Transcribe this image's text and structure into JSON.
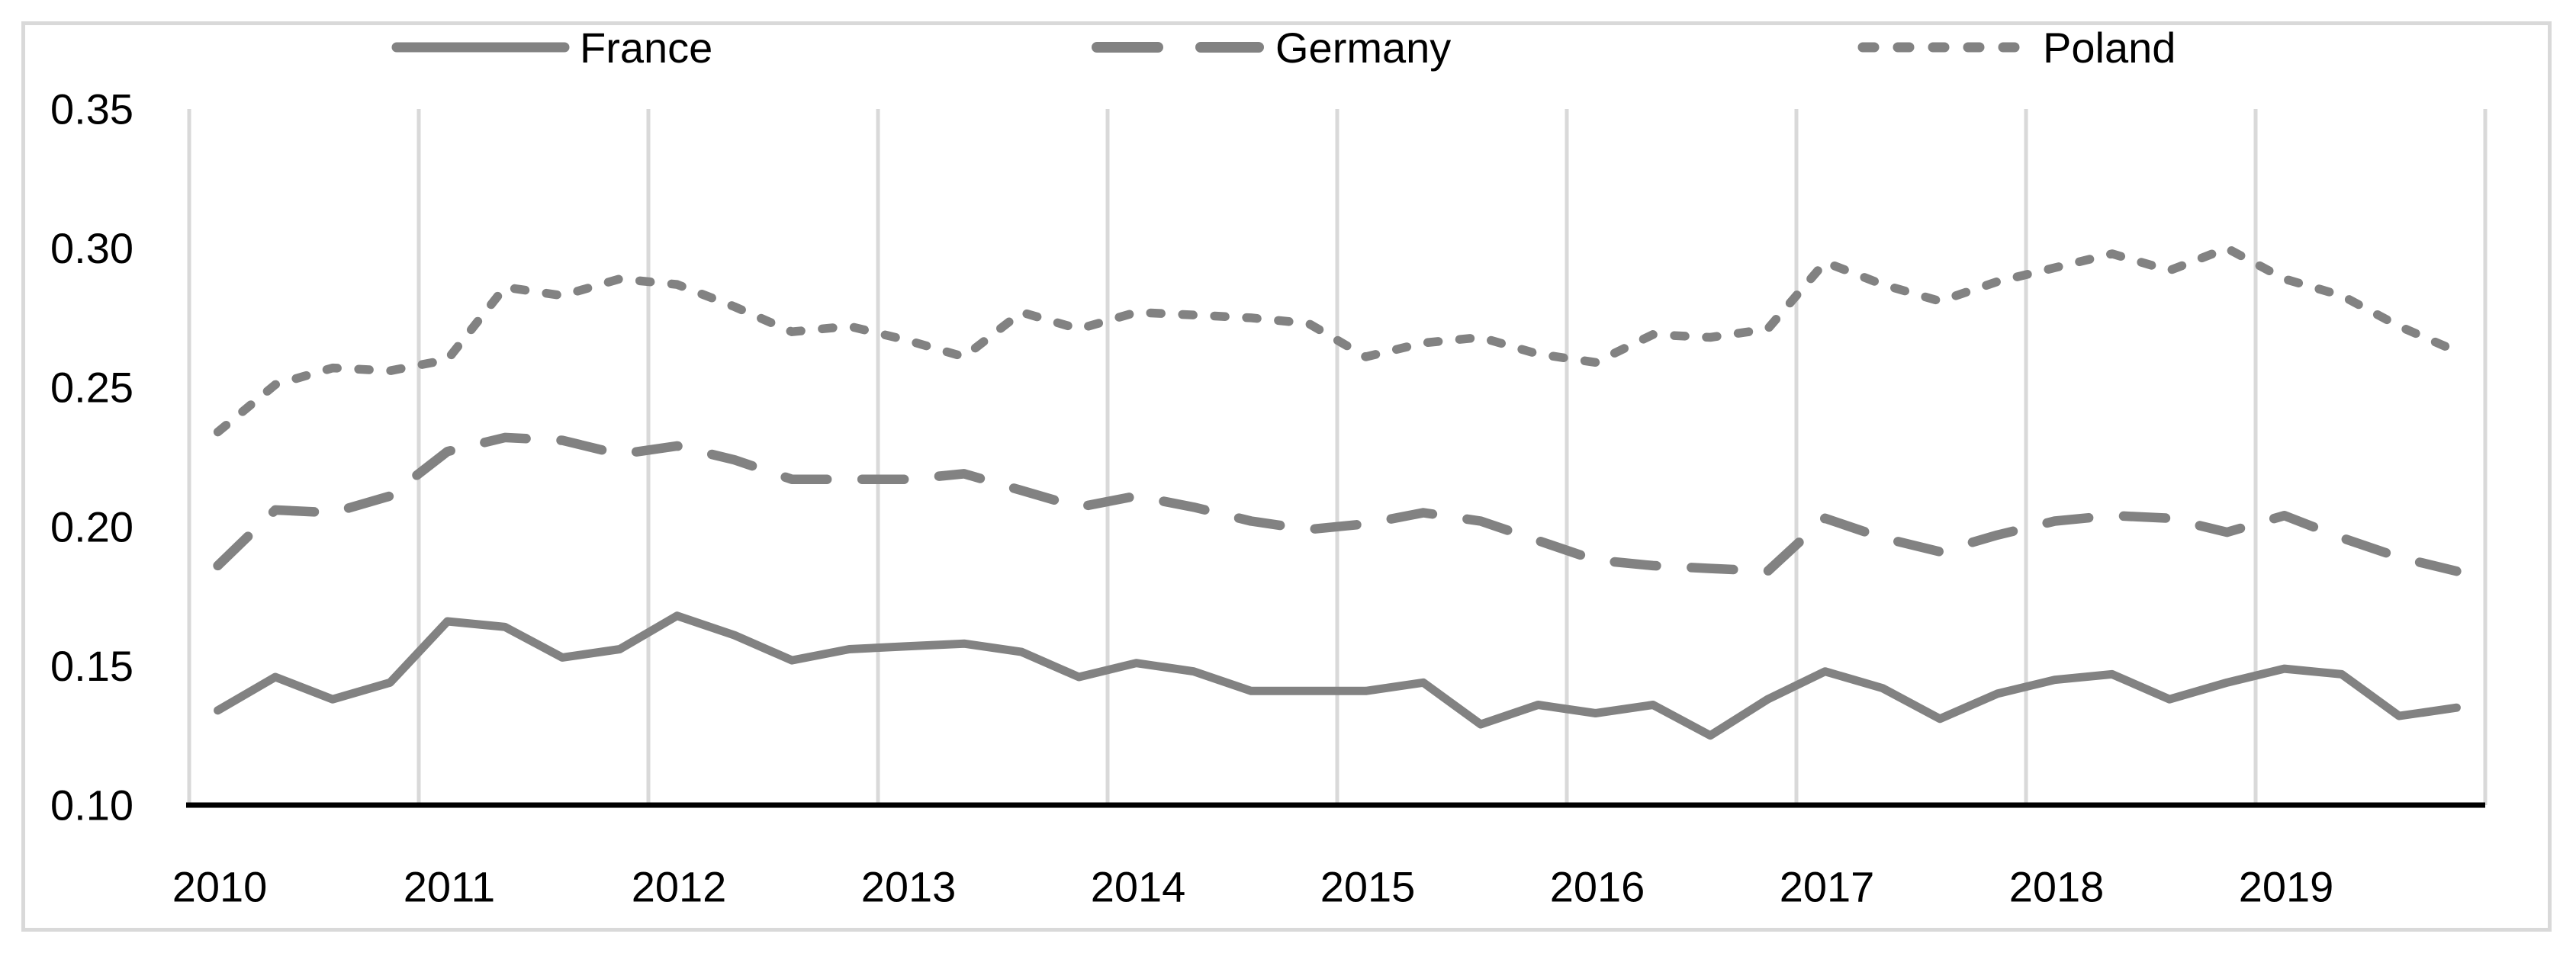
{
  "chart_data": {
    "type": "line",
    "title": "",
    "xlabel": "",
    "ylabel": "",
    "x_frequency": "quarterly",
    "x_categories": [
      "2010",
      "2011",
      "2012",
      "2013",
      "2014",
      "2015",
      "2016",
      "2017",
      "2018",
      "2019"
    ],
    "ylim": [
      0.1,
      0.35
    ],
    "yticks": [
      0.35,
      0.3,
      0.25,
      0.2,
      0.15,
      0.1
    ],
    "ytick_labels": [
      "0.35",
      "0.30",
      "0.25",
      "0.20",
      "0.15",
      "0.10"
    ],
    "grid": "vertical-only",
    "legend_position": "top",
    "line_color": "#828282",
    "axis_color": "#000000",
    "gridline_color": "#d9d9d9",
    "border_color": "#d9d9d9",
    "text_color": "#000000",
    "series": [
      {
        "name": "France",
        "style": "solid",
        "values": [
          0.134,
          0.146,
          0.138,
          0.144,
          0.166,
          0.164,
          0.153,
          0.156,
          0.168,
          0.161,
          0.152,
          0.156,
          0.157,
          0.158,
          0.155,
          0.146,
          0.151,
          0.148,
          0.141,
          0.141,
          0.141,
          0.144,
          0.129,
          0.136,
          0.133,
          0.136,
          0.125,
          0.138,
          0.148,
          0.142,
          0.131,
          0.14,
          0.145,
          0.147,
          0.138,
          0.144,
          0.149,
          0.147,
          0.132,
          0.135
        ]
      },
      {
        "name": "Germany",
        "style": "long-dash",
        "values": [
          0.186,
          0.206,
          0.205,
          0.211,
          0.227,
          0.232,
          0.231,
          0.226,
          0.229,
          0.224,
          0.217,
          0.217,
          0.217,
          0.219,
          0.213,
          0.207,
          0.211,
          0.207,
          0.202,
          0.199,
          0.201,
          0.205,
          0.202,
          0.195,
          0.188,
          0.186,
          0.185,
          0.184,
          0.203,
          0.196,
          0.191,
          0.197,
          0.202,
          0.204,
          0.203,
          0.198,
          0.204,
          0.196,
          0.189,
          0.184
        ]
      },
      {
        "name": "Poland",
        "style": "short-dash",
        "values": [
          0.234,
          0.251,
          0.257,
          0.256,
          0.26,
          0.286,
          0.283,
          0.289,
          0.287,
          0.279,
          0.27,
          0.272,
          0.267,
          0.261,
          0.277,
          0.271,
          0.277,
          0.276,
          0.275,
          0.273,
          0.261,
          0.266,
          0.268,
          0.262,
          0.259,
          0.269,
          0.268,
          0.271,
          0.295,
          0.287,
          0.281,
          0.288,
          0.293,
          0.298,
          0.292,
          0.3,
          0.289,
          0.283,
          0.272,
          0.263
        ]
      }
    ]
  }
}
